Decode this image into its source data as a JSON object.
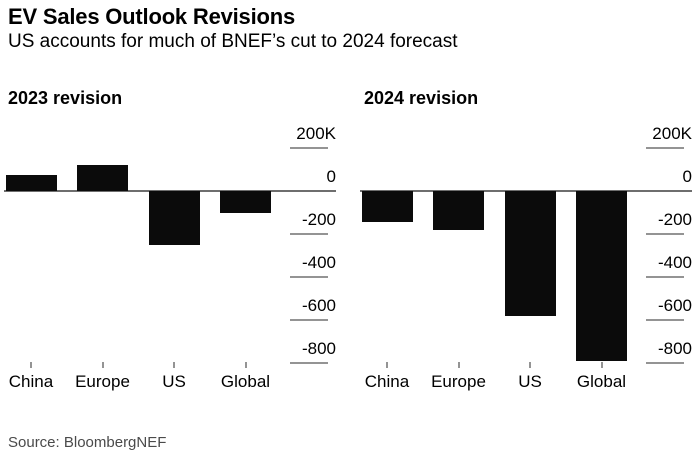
{
  "page": {
    "title": "EV Sales Outlook Revisions",
    "subtitle": "US accounts for much of BNEF’s cut to 2024 forecast",
    "source": "Source: BloombergNEF"
  },
  "colors": {
    "bar": "#0b0b0b",
    "zero_axis": "#6e6e6e",
    "tick_line": "#949494",
    "text": "#000000",
    "source_text": "#4a4a4a",
    "background": "#ffffff"
  },
  "chart_data": [
    {
      "type": "bar",
      "title": "2023 revision",
      "categories": [
        "China",
        "Europe",
        "US",
        "Global"
      ],
      "values": [
        75,
        120,
        -250,
        -100
      ],
      "unit": "K",
      "yticks": [
        {
          "label": "200K",
          "value": 200
        },
        {
          "label": "0",
          "value": 0
        },
        {
          "label": "-200",
          "value": -200
        },
        {
          "label": "-400",
          "value": -400
        },
        {
          "label": "-600",
          "value": -600
        },
        {
          "label": "-800",
          "value": -800
        }
      ],
      "ylim": [
        350,
        -820
      ],
      "grid": false,
      "tick_side": "right",
      "bar_color": "#0b0b0b"
    },
    {
      "type": "bar",
      "title": "2024 revision",
      "categories": [
        "China",
        "Europe",
        "US",
        "Global"
      ],
      "values": [
        -145,
        -180,
        -580,
        -790
      ],
      "unit": "K",
      "yticks": [
        {
          "label": "200K",
          "value": 200
        },
        {
          "label": "0",
          "value": 0
        },
        {
          "label": "-200",
          "value": -200
        },
        {
          "label": "-400",
          "value": -400
        },
        {
          "label": "-600",
          "value": -600
        },
        {
          "label": "-800",
          "value": -800
        }
      ],
      "ylim": [
        350,
        -820
      ],
      "grid": false,
      "tick_side": "right",
      "bar_color": "#0b0b0b"
    }
  ]
}
